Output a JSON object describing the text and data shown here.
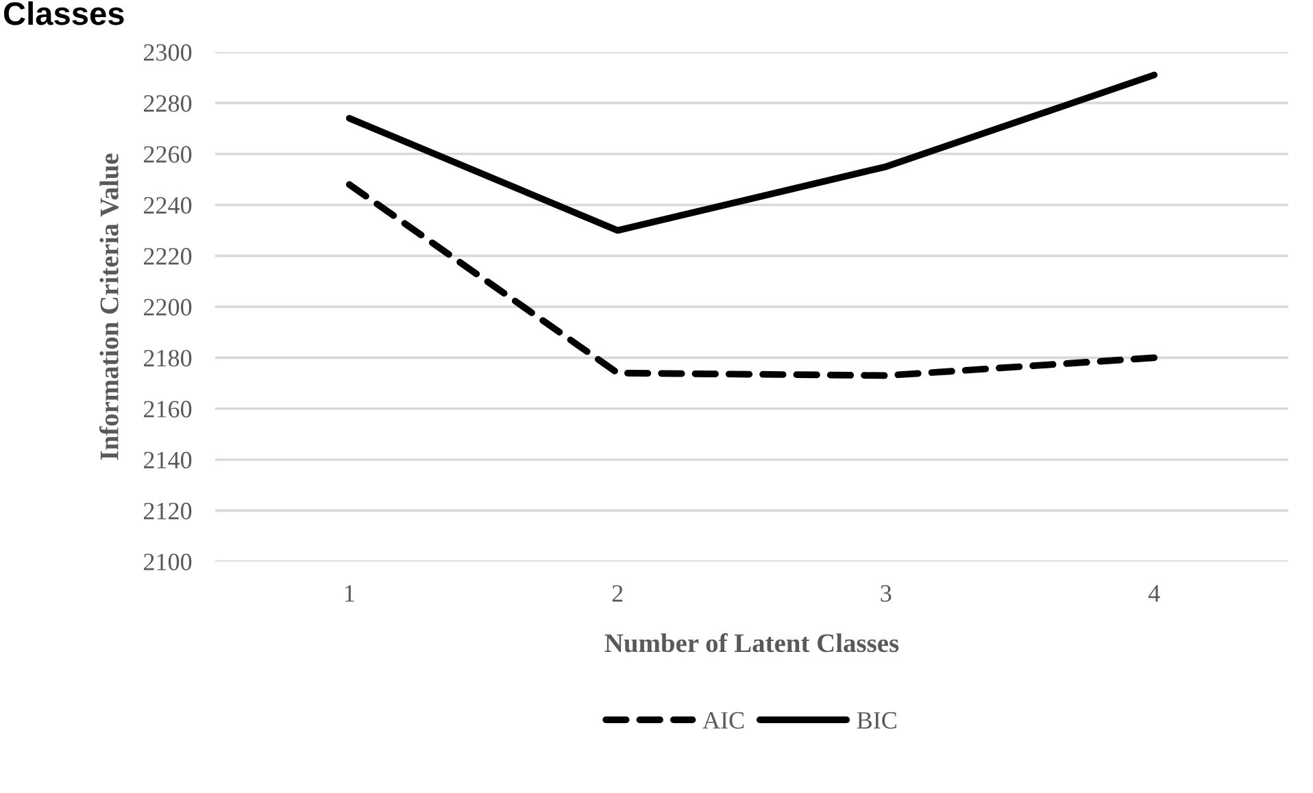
{
  "chart_data": {
    "type": "line",
    "title": "Classes",
    "xlabel": "Number of Latent Classes",
    "ylabel": "Information Criteria Value",
    "categories": [
      "1",
      "2",
      "3",
      "4"
    ],
    "series": [
      {
        "name": "AIC",
        "color": "#000000",
        "line_style": "dashed",
        "values": [
          2248,
          2174,
          2173,
          2180
        ]
      },
      {
        "name": "BIC",
        "color": "#000000",
        "line_style": "solid",
        "values": [
          2274,
          2230,
          2255,
          2291
        ]
      }
    ],
    "ylim": [
      2100,
      2300
    ],
    "yticks": [
      2100,
      2120,
      2140,
      2160,
      2180,
      2200,
      2220,
      2240,
      2260,
      2280,
      2300
    ],
    "grid": "y",
    "legend": "bottom",
    "marker": "none"
  }
}
